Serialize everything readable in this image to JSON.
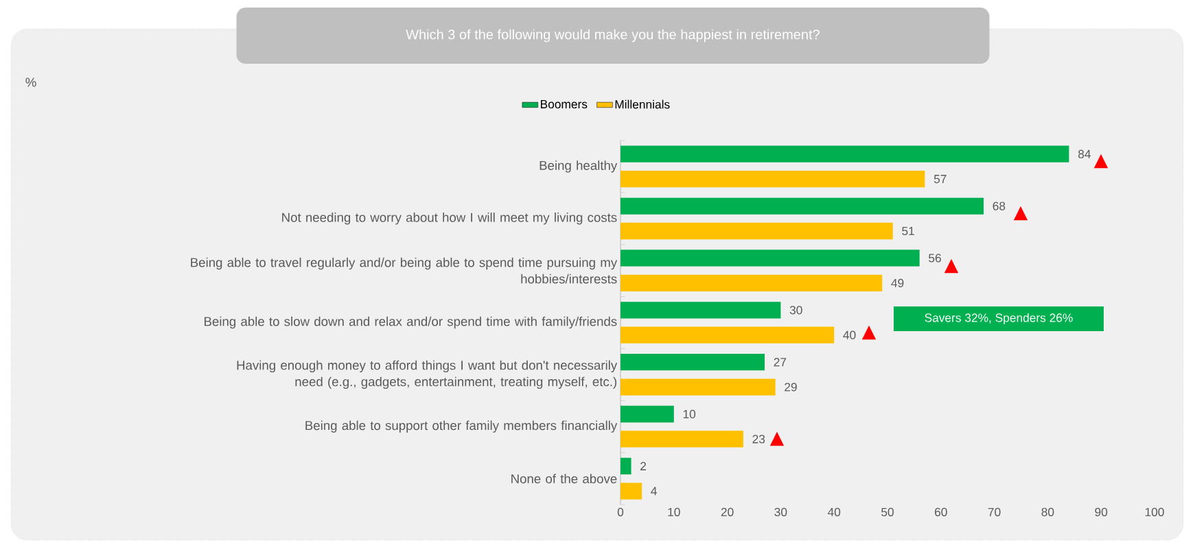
{
  "chart_data": {
    "type": "bar",
    "orientation": "horizontal",
    "title": "Which 3 of the following would make you the happiest in retirement?",
    "categories": [
      "Being healthy",
      "Not needing to worry about how I will meet my living costs",
      "Being able to travel regularly and/or being able to spend time pursuing my hobbies/interests",
      "Being able to slow down and relax and/or spend time with family/friends",
      "Having enough money to afford things I want but don't necessarily need (e.g., gadgets, entertainment, treating myself, etc.)",
      "Being able to support other family members financially",
      "None of the above"
    ],
    "series": [
      {
        "name": "Boomers",
        "color": "#00b050",
        "values": [
          84,
          68,
          56,
          30,
          27,
          10,
          2
        ]
      },
      {
        "name": "Millennials",
        "color": "#ffc000",
        "values": [
          57,
          51,
          49,
          40,
          29,
          23,
          4
        ]
      }
    ],
    "xlim": [
      0,
      100
    ],
    "xticks": [
      0,
      10,
      20,
      30,
      40,
      50,
      60,
      70,
      80,
      90,
      100
    ],
    "data_labels": true,
    "legend": "top",
    "annotations": [
      "%",
      "Savers 32%, Spenders 26%",
      "▲",
      "▲",
      "▲",
      "▲",
      "▲"
    ]
  }
}
